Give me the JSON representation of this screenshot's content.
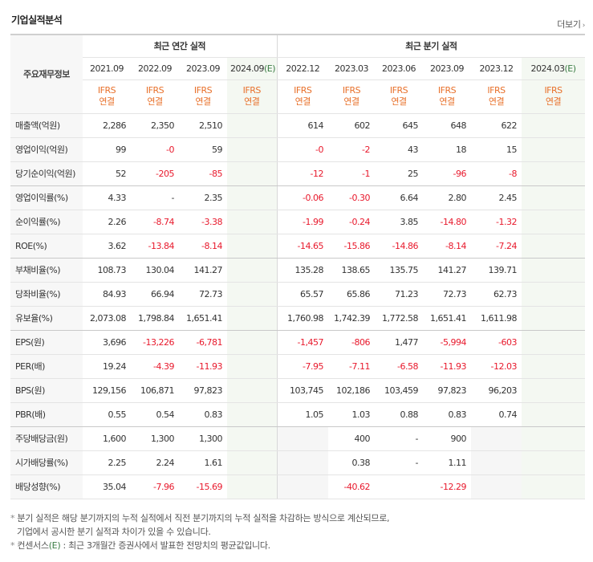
{
  "title": "기업실적분석",
  "more_label": "더보기",
  "header": {
    "row_label": "주요재무정보",
    "annual_group": "최근 연간 실적",
    "quarter_group": "최근 분기 실적",
    "annual_dates": [
      "2021.09",
      "2022.09",
      "2023.09",
      "2024.09"
    ],
    "annual_est_mark": "(E)",
    "quarter_dates": [
      "2022.12",
      "2023.03",
      "2023.06",
      "2023.09",
      "2023.12",
      "2024.03"
    ],
    "quarter_est_mark": "(E)",
    "ifrs_top": "IFRS",
    "ifrs_bottom": "연결"
  },
  "rows": [
    {
      "label": "매출액(억원)",
      "annual": [
        "2,286",
        "2,350",
        "2,510",
        ""
      ],
      "quarter": [
        "614",
        "602",
        "645",
        "648",
        "622",
        ""
      ]
    },
    {
      "label": "영업이익(억원)",
      "annual": [
        "99",
        "-0",
        "59",
        ""
      ],
      "quarter": [
        "-0",
        "-2",
        "43",
        "18",
        "15",
        ""
      ]
    },
    {
      "label": "당기순이익(억원)",
      "annual": [
        "52",
        "-205",
        "-85",
        ""
      ],
      "quarter": [
        "-12",
        "-1",
        "25",
        "-96",
        "-8",
        ""
      ]
    },
    {
      "label": "영업이익률(%)",
      "annual": [
        "4.33",
        "-",
        "2.35",
        ""
      ],
      "quarter": [
        "-0.06",
        "-0.30",
        "6.64",
        "2.80",
        "2.45",
        ""
      ]
    },
    {
      "label": "순이익률(%)",
      "annual": [
        "2.26",
        "-8.74",
        "-3.38",
        ""
      ],
      "quarter": [
        "-1.99",
        "-0.24",
        "3.85",
        "-14.80",
        "-1.32",
        ""
      ]
    },
    {
      "label": "ROE(%)",
      "annual": [
        "3.62",
        "-13.84",
        "-8.14",
        ""
      ],
      "quarter": [
        "-14.65",
        "-15.86",
        "-14.86",
        "-8.14",
        "-7.24",
        ""
      ]
    },
    {
      "label": "부채비율(%)",
      "annual": [
        "108.73",
        "130.04",
        "141.27",
        ""
      ],
      "quarter": [
        "135.28",
        "138.65",
        "135.75",
        "141.27",
        "139.71",
        ""
      ]
    },
    {
      "label": "당좌비율(%)",
      "annual": [
        "84.93",
        "66.94",
        "72.73",
        ""
      ],
      "quarter": [
        "65.57",
        "65.86",
        "71.23",
        "72.73",
        "62.73",
        ""
      ]
    },
    {
      "label": "유보율(%)",
      "annual": [
        "2,073.08",
        "1,798.84",
        "1,651.41",
        ""
      ],
      "quarter": [
        "1,760.98",
        "1,742.39",
        "1,772.58",
        "1,651.41",
        "1,611.98",
        ""
      ]
    },
    {
      "label": "EPS(원)",
      "annual": [
        "3,696",
        "-13,226",
        "-6,781",
        ""
      ],
      "quarter": [
        "-1,457",
        "-806",
        "1,477",
        "-5,994",
        "-603",
        ""
      ]
    },
    {
      "label": "PER(배)",
      "annual": [
        "19.24",
        "-4.39",
        "-11.93",
        ""
      ],
      "quarter": [
        "-7.95",
        "-7.11",
        "-6.58",
        "-11.93",
        "-12.03",
        ""
      ]
    },
    {
      "label": "BPS(원)",
      "annual": [
        "129,156",
        "106,871",
        "97,823",
        ""
      ],
      "quarter": [
        "103,745",
        "102,186",
        "103,459",
        "97,823",
        "96,203",
        ""
      ]
    },
    {
      "label": "PBR(배)",
      "annual": [
        "0.55",
        "0.54",
        "0.83",
        ""
      ],
      "quarter": [
        "1.05",
        "1.03",
        "0.88",
        "0.83",
        "0.74",
        ""
      ]
    },
    {
      "label": "주당배당금(원)",
      "annual": [
        "1,600",
        "1,300",
        "1,300",
        ""
      ],
      "quarter": [
        "",
        "400",
        "-",
        "900",
        "",
        ""
      ],
      "quarter_gray": [
        true,
        false,
        false,
        false,
        true,
        false
      ]
    },
    {
      "label": "시가배당률(%)",
      "annual": [
        "2.25",
        "2.24",
        "1.61",
        ""
      ],
      "quarter": [
        "",
        "0.38",
        "-",
        "1.11",
        "",
        ""
      ],
      "quarter_gray": [
        true,
        false,
        false,
        false,
        true,
        false
      ]
    },
    {
      "label": "배당성향(%)",
      "annual": [
        "35.04",
        "-7.96",
        "-15.69",
        ""
      ],
      "quarter": [
        "",
        "-40.62",
        "",
        "-12.29",
        "",
        ""
      ],
      "quarter_gray": [
        true,
        false,
        false,
        false,
        true,
        false
      ]
    }
  ],
  "group_ends": [
    2,
    5,
    8,
    12
  ],
  "notes": {
    "line1": "분기 실적은 해당 분기까지의 누적 실적에서 직전 분기까지의 누적 실적을 차감하는 방식으로 계산되므로,",
    "line2": "기업에서 공시한 분기 실적과 차이가 있을 수 있습니다.",
    "line3_prefix": "컨센서스",
    "line3_mark": "(E)",
    "line3_suffix": " : 최근 3개월간 증권사에서 발표한 전망치의 평균값입니다.",
    "bullet": "*"
  },
  "colors": {
    "ifrs": "#e8702a",
    "negative": "#e8192c",
    "estimate": "#3a7d44"
  }
}
